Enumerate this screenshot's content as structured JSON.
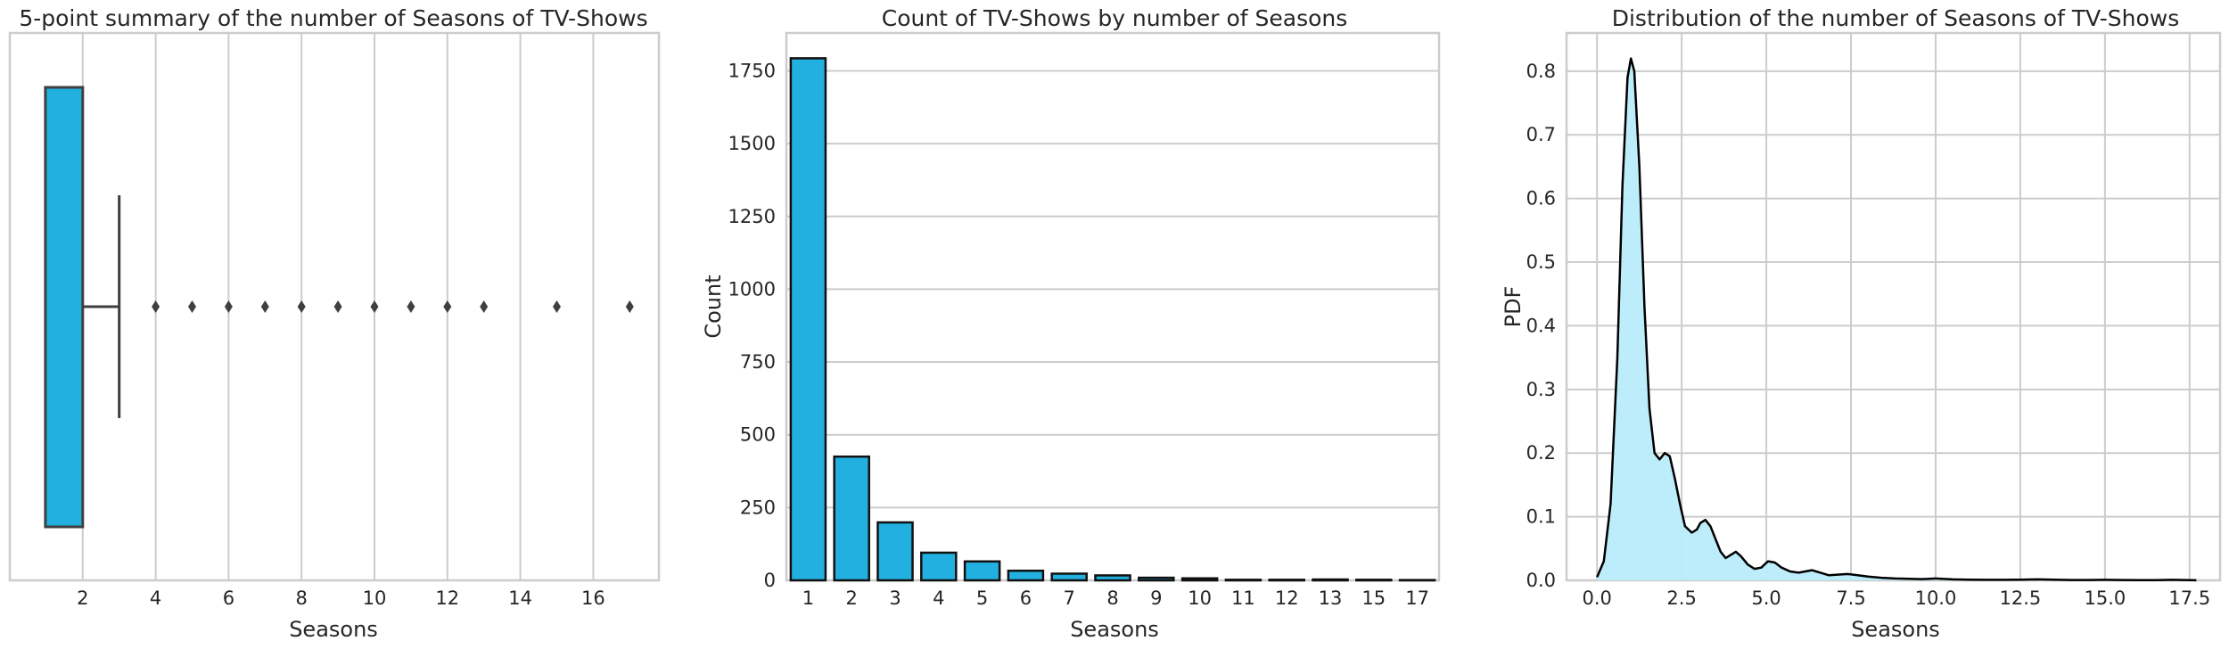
{
  "colors": {
    "bar": "#22b0e0",
    "kde_fill": "#b9ecfb",
    "line": "#000000",
    "box_edge": "#3f3f3f",
    "grid": "#cccccc",
    "spine": "#cccccc"
  },
  "chart_data": [
    {
      "type": "box",
      "title": "5-point summary of the number of Seasons of TV-Shows",
      "xlabel": "Seasons",
      "ylabel": "",
      "orientation": "horizontal",
      "xlim": [
        0.0,
        17.8
      ],
      "xticks": [
        2,
        4,
        6,
        8,
        10,
        12,
        14,
        16
      ],
      "grid": true,
      "stats": {
        "min": 1,
        "q1": 1,
        "median": 1,
        "q3": 2,
        "whisker_high": 3
      },
      "outliers": [
        4,
        5,
        6,
        7,
        8,
        9,
        10,
        11,
        12,
        13,
        15,
        17
      ]
    },
    {
      "type": "bar",
      "title": "Count of TV-Shows by number of Seasons",
      "xlabel": "Seasons",
      "ylabel": "Count",
      "categories": [
        "1",
        "2",
        "3",
        "4",
        "5",
        "6",
        "7",
        "8",
        "9",
        "10",
        "11",
        "12",
        "13",
        "15",
        "17"
      ],
      "values": [
        1793,
        425,
        199,
        95,
        65,
        33,
        23,
        17,
        9,
        7,
        2,
        2,
        3,
        2,
        1
      ],
      "ylim": [
        0,
        1880
      ],
      "yticks": [
        0,
        250,
        500,
        750,
        1000,
        1250,
        1500,
        1750
      ],
      "grid": true
    },
    {
      "type": "area",
      "title": "Distribution of the number of Seasons of TV-Shows",
      "xlabel": "Seasons",
      "ylabel": "PDF",
      "xlim": [
        -0.9,
        18.4
      ],
      "ylim": [
        0,
        0.86
      ],
      "xticks": [
        "0.0",
        "2.5",
        "5.0",
        "7.5",
        "10.0",
        "12.5",
        "15.0",
        "17.5"
      ],
      "yticks": [
        "0.0",
        "0.1",
        "0.2",
        "0.3",
        "0.4",
        "0.5",
        "0.6",
        "0.7",
        "0.8"
      ],
      "grid": true,
      "series": [
        {
          "x": [
            0.0,
            0.2,
            0.4,
            0.6,
            0.75,
            0.9,
            1.0,
            1.1,
            1.25,
            1.4,
            1.55,
            1.7,
            1.85,
            2.0,
            2.15,
            2.3,
            2.45,
            2.6,
            2.8,
            2.95,
            3.05,
            3.2,
            3.35,
            3.5,
            3.65,
            3.8,
            3.95,
            4.1,
            4.25,
            4.45,
            4.65,
            4.85,
            5.05,
            5.25,
            5.45,
            5.7,
            5.95,
            6.15,
            6.35,
            6.6,
            6.85,
            7.1,
            7.4,
            7.7,
            8.0,
            8.4,
            8.8,
            9.2,
            9.6,
            10.0,
            10.5,
            11.0,
            11.5,
            12.0,
            12.5,
            13.0,
            13.5,
            14.0,
            14.5,
            15.0,
            15.5,
            16.0,
            16.5,
            17.0,
            17.5,
            17.7
          ],
          "y": [
            0.005,
            0.03,
            0.12,
            0.35,
            0.62,
            0.79,
            0.82,
            0.8,
            0.65,
            0.43,
            0.27,
            0.2,
            0.19,
            0.2,
            0.195,
            0.16,
            0.12,
            0.085,
            0.075,
            0.08,
            0.09,
            0.095,
            0.085,
            0.065,
            0.045,
            0.035,
            0.04,
            0.045,
            0.038,
            0.025,
            0.018,
            0.02,
            0.03,
            0.028,
            0.02,
            0.014,
            0.012,
            0.014,
            0.016,
            0.012,
            0.008,
            0.009,
            0.01,
            0.008,
            0.006,
            0.004,
            0.003,
            0.0025,
            0.002,
            0.003,
            0.0015,
            0.001,
            0.0008,
            0.0008,
            0.001,
            0.0015,
            0.001,
            0.0005,
            0.0005,
            0.0008,
            0.0005,
            0.0003,
            0.0003,
            0.0008,
            0.0003,
            0.0001
          ]
        }
      ]
    }
  ]
}
